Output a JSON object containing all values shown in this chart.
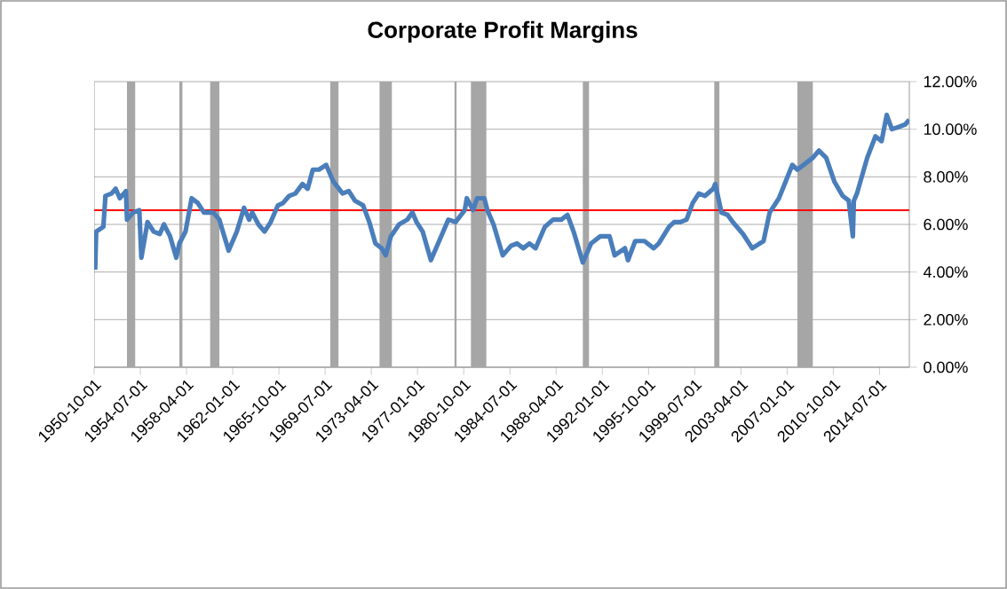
{
  "chart_data": {
    "type": "line",
    "title": "Corporate Profit Margins",
    "series": [
      {
        "color": "#4a7ebb",
        "x": [
          "1950-11",
          "1950-12",
          "1951-07",
          "1951-09",
          "1952-03",
          "1952-07",
          "1952-11",
          "1953-05",
          "1953-06",
          "1953-12",
          "1954-06",
          "1954-08",
          "1955-02",
          "1955-08",
          "1956-02",
          "1956-06",
          "1956-12",
          "1957-06",
          "1957-09",
          "1958-03",
          "1958-09",
          "1959-03",
          "1959-09",
          "1960-06",
          "1960-12",
          "1961-02",
          "1961-09",
          "1962-05",
          "1962-12",
          "1963-05",
          "1963-08",
          "1964-02",
          "1964-08",
          "1965-02",
          "1965-09",
          "1966-02",
          "1966-08",
          "1967-02",
          "1967-09",
          "1968-02",
          "1968-07",
          "1969-01",
          "1969-08",
          "1970-03",
          "1970-12",
          "1971-06",
          "1971-12",
          "1972-08",
          "1973-02",
          "1973-08",
          "1974-02",
          "1974-06",
          "1974-11",
          "1975-07",
          "1976-03",
          "1976-08",
          "1976-12",
          "1977-06",
          "1978-02",
          "1978-12",
          "1979-07",
          "1980-02",
          "1980-11",
          "1981-01",
          "1981-07",
          "1981-11",
          "1982-06",
          "1982-09",
          "1983-03",
          "1983-12",
          "1984-08",
          "1985-02",
          "1985-08",
          "1986-02",
          "1986-08",
          "1987-05",
          "1988-01",
          "1988-09",
          "1989-03",
          "1989-09",
          "1990-06",
          "1991-02",
          "1991-11",
          "1992-08",
          "1993-01",
          "1993-11",
          "1994-02",
          "1994-09",
          "1995-06",
          "1996-03",
          "1996-08",
          "1997-06",
          "1997-11",
          "1998-05",
          "1998-11",
          "1999-05",
          "1999-11",
          "2000-05",
          "2001-01",
          "2001-03",
          "2001-09",
          "2002-03",
          "2002-08",
          "2003-06",
          "2004-03",
          "2005-02",
          "2005-08",
          "2006-05",
          "2007-06",
          "2007-11",
          "2008-05",
          "2009-02",
          "2009-08",
          "2010-03",
          "2010-11",
          "2011-07",
          "2012-01",
          "2012-05",
          "2012-06",
          "2012-09",
          "2013-07",
          "2014-03",
          "2014-09",
          "2015-02",
          "2015-07",
          "2016-02",
          "2016-08",
          "2016-12"
        ],
        "values": [
          4.1,
          5.7,
          5.9,
          7.2,
          7.3,
          7.5,
          7.1,
          7.4,
          6.2,
          6.5,
          6.6,
          4.6,
          6.1,
          5.7,
          5.6,
          6.0,
          5.5,
          4.6,
          5.2,
          5.7,
          7.1,
          6.9,
          6.5,
          6.5,
          6.2,
          5.9,
          4.9,
          5.7,
          6.7,
          6.2,
          6.5,
          6.0,
          5.7,
          6.1,
          6.8,
          6.9,
          7.2,
          7.3,
          7.7,
          7.5,
          8.3,
          8.3,
          8.5,
          7.8,
          7.3,
          7.4,
          7.0,
          6.8,
          6.1,
          5.2,
          5.0,
          4.7,
          5.5,
          6.0,
          6.2,
          6.5,
          6.1,
          5.7,
          4.5,
          5.5,
          6.2,
          6.1,
          6.6,
          7.1,
          6.6,
          7.1,
          7.1,
          6.6,
          6.0,
          4.7,
          5.1,
          5.2,
          5.0,
          5.2,
          5.0,
          5.9,
          6.2,
          6.2,
          6.4,
          5.7,
          4.4,
          5.2,
          5.5,
          5.5,
          4.7,
          5.0,
          4.5,
          5.3,
          5.3,
          5.0,
          5.2,
          5.9,
          6.1,
          6.1,
          6.2,
          6.9,
          7.3,
          7.2,
          7.5,
          7.7,
          6.5,
          6.4,
          6.1,
          5.6,
          5.0,
          5.3,
          6.5,
          7.1,
          8.5,
          8.3,
          8.5,
          8.8,
          9.1,
          8.8,
          7.8,
          7.2,
          7.0,
          5.5,
          7.0,
          7.3,
          8.8,
          9.7,
          9.5,
          10.6,
          10.0,
          10.1,
          10.2,
          10.4
        ]
      }
    ],
    "xlim": [
      "1950-10-01",
      "2016-12"
    ],
    "xticks": [
      "1950-10-01",
      "1954-07-01",
      "1958-04-01",
      "1962-01-01",
      "1965-10-01",
      "1969-07-01",
      "1973-04-01",
      "1977-01-01",
      "1980-10-01",
      "1984-07-01",
      "1988-04-01",
      "1992-01-01",
      "1995-10-01",
      "1999-07-01",
      "2003-04-01",
      "2007-01-01",
      "2010-10-01",
      "2014-07-01"
    ],
    "ylim": [
      0,
      12
    ],
    "yticks": [
      {
        "value": 0,
        "label": "0.00%"
      },
      {
        "value": 2,
        "label": "2.00%"
      },
      {
        "value": 4,
        "label": "4.00%"
      },
      {
        "value": 6,
        "label": "6.00%"
      },
      {
        "value": 8,
        "label": "8.00%"
      },
      {
        "value": 10,
        "label": "10.00%"
      },
      {
        "value": 12,
        "label": "12.00%"
      }
    ],
    "ref_lines": [
      {
        "axis": "y",
        "value": 6.6,
        "color": "#ff0000"
      }
    ],
    "bands": [
      {
        "axis": "x",
        "from": "1953-06",
        "to": "1954-02",
        "color": "#a6a6a6"
      },
      {
        "axis": "x",
        "from": "1957-09",
        "to": "1957-12",
        "color": "#a6a6a6"
      },
      {
        "axis": "x",
        "from": "1960-03",
        "to": "1960-12",
        "color": "#a6a6a6"
      },
      {
        "axis": "x",
        "from": "1969-12",
        "to": "1970-08",
        "color": "#a6a6a6"
      },
      {
        "axis": "x",
        "from": "1973-12",
        "to": "1974-12",
        "color": "#a6a6a6"
      },
      {
        "axis": "x",
        "from": "1980-01",
        "to": "1980-03",
        "color": "#a6a6a6"
      },
      {
        "axis": "x",
        "from": "1981-05",
        "to": "1982-08",
        "color": "#a6a6a6"
      },
      {
        "axis": "x",
        "from": "1990-06",
        "to": "1990-12",
        "color": "#a6a6a6"
      },
      {
        "axis": "x",
        "from": "2001-02",
        "to": "2001-07",
        "color": "#a6a6a6"
      },
      {
        "axis": "x",
        "from": "2007-11",
        "to": "2009-02",
        "color": "#a6a6a6"
      }
    ],
    "grid": "y",
    "legend": false,
    "marker": "none",
    "line_style": "solid"
  }
}
